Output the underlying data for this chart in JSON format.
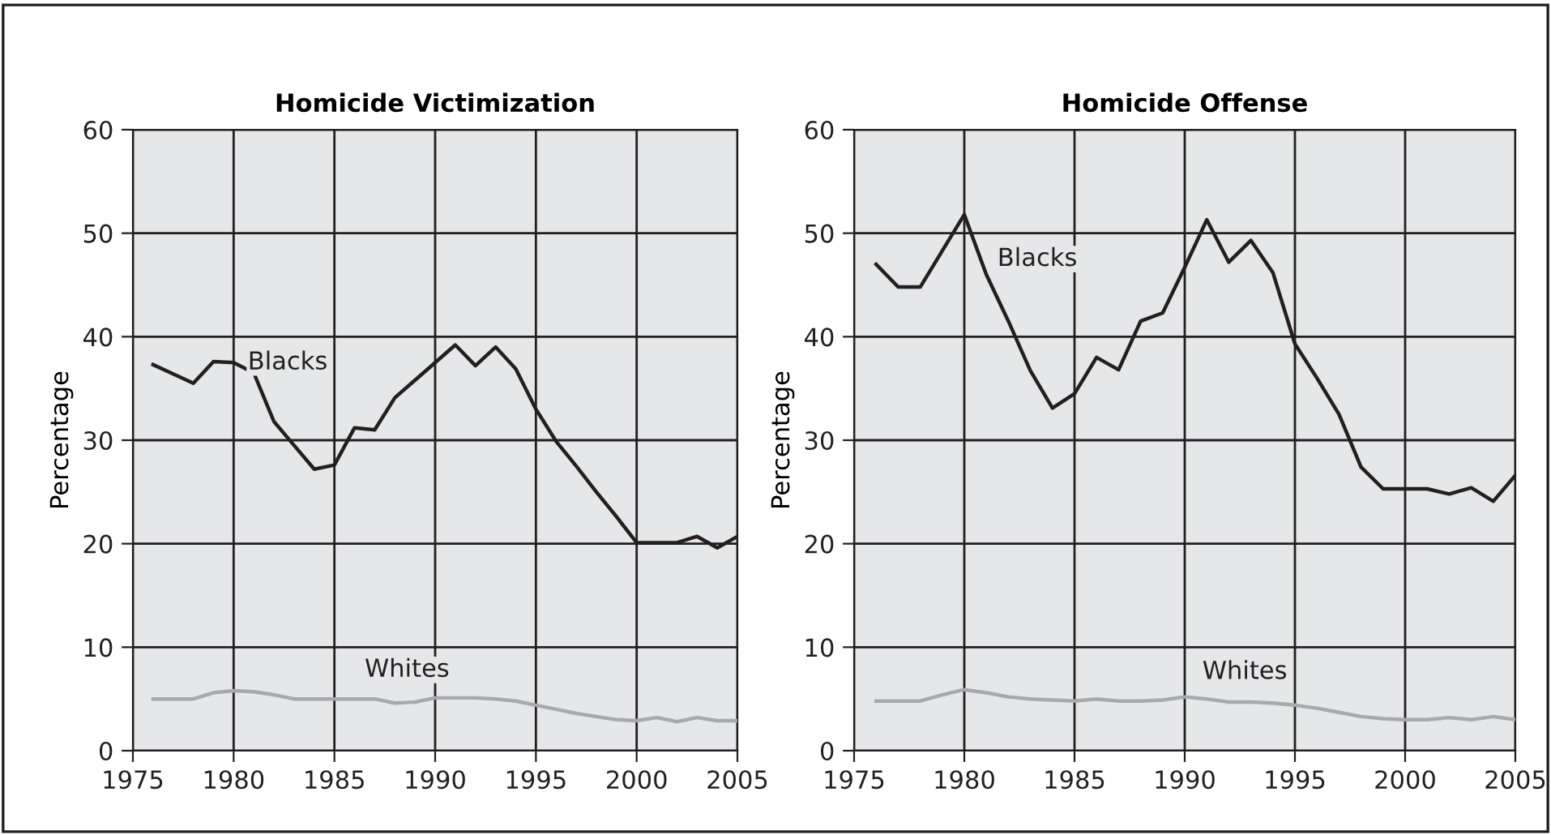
{
  "chart_data": [
    {
      "type": "line",
      "title": "Homicide Victimization",
      "ylabel": "Percentage",
      "x": [
        1976,
        1977,
        1978,
        1979,
        1980,
        1981,
        1982,
        1983,
        1984,
        1985,
        1986,
        1987,
        1988,
        1989,
        1990,
        1991,
        1992,
        1993,
        1994,
        1995,
        1996,
        1997,
        1998,
        1999,
        2000,
        2001,
        2002,
        2003,
        2004,
        2005
      ],
      "series": [
        {
          "name": "Blacks",
          "color": "#231f20",
          "values": [
            37.3,
            36.4,
            35.5,
            37.6,
            37.5,
            36.5,
            31.8,
            29.5,
            27.2,
            27.6,
            31.2,
            31.0,
            34.1,
            35.8,
            37.5,
            39.2,
            37.2,
            39.0,
            36.9,
            33.0,
            29.9,
            27.5,
            25.0,
            22.6,
            20.1,
            20.1,
            20.1,
            20.7,
            19.6,
            20.7
          ]
        },
        {
          "name": "Whites",
          "color": "#a7a9ac",
          "values": [
            5.0,
            5.0,
            5.0,
            5.6,
            5.8,
            5.7,
            5.4,
            5.0,
            5.0,
            5.0,
            5.0,
            5.0,
            4.6,
            4.7,
            5.1,
            5.1,
            5.1,
            5.0,
            4.8,
            4.4,
            4.0,
            3.6,
            3.3,
            3.0,
            2.9,
            3.2,
            2.8,
            3.2,
            2.9,
            2.9
          ]
        }
      ],
      "xlim": [
        1975,
        2005
      ],
      "xticks": [
        1975,
        1980,
        1985,
        1990,
        1995,
        2000,
        2005
      ],
      "ylim": [
        0,
        60
      ],
      "yticks": [
        0,
        10,
        20,
        30,
        40,
        50,
        60
      ],
      "grid": true,
      "legend": false,
      "marker": "none",
      "line_style": "solid"
    },
    {
      "type": "line",
      "title": "Homicide Offense",
      "ylabel": "Percentage",
      "x": [
        1976,
        1977,
        1978,
        1979,
        1980,
        1981,
        1982,
        1983,
        1984,
        1985,
        1986,
        1987,
        1988,
        1989,
        1990,
        1991,
        1992,
        1993,
        1994,
        1995,
        1996,
        1997,
        1998,
        1999,
        2000,
        2001,
        2002,
        2003,
        2004,
        2005
      ],
      "series": [
        {
          "name": "Blacks",
          "color": "#231f20",
          "values": [
            47.0,
            44.8,
            44.8,
            48.3,
            51.8,
            46.0,
            41.5,
            36.7,
            33.1,
            34.5,
            38.0,
            36.8,
            41.5,
            42.3,
            46.7,
            51.3,
            47.2,
            49.3,
            46.2,
            39.3,
            36.0,
            32.5,
            27.4,
            25.3,
            25.3,
            25.3,
            24.8,
            25.4,
            24.1,
            26.6
          ]
        },
        {
          "name": "Whites",
          "color": "#a7a9ac",
          "values": [
            4.8,
            4.8,
            4.8,
            5.4,
            5.9,
            5.6,
            5.2,
            5.0,
            4.9,
            4.8,
            5.0,
            4.8,
            4.8,
            4.9,
            5.2,
            5.0,
            4.7,
            4.7,
            4.6,
            4.4,
            4.1,
            3.7,
            3.3,
            3.1,
            3.0,
            3.0,
            3.2,
            3.0,
            3.3,
            3.0
          ]
        }
      ],
      "xlim": [
        1975,
        2005
      ],
      "xticks": [
        1975,
        1980,
        1985,
        1990,
        1995,
        2000,
        2005
      ],
      "ylim": [
        0,
        60
      ],
      "yticks": [
        0,
        10,
        20,
        30,
        40,
        50,
        60
      ],
      "grid": true,
      "legend": false,
      "marker": "none",
      "line_style": "solid"
    }
  ]
}
